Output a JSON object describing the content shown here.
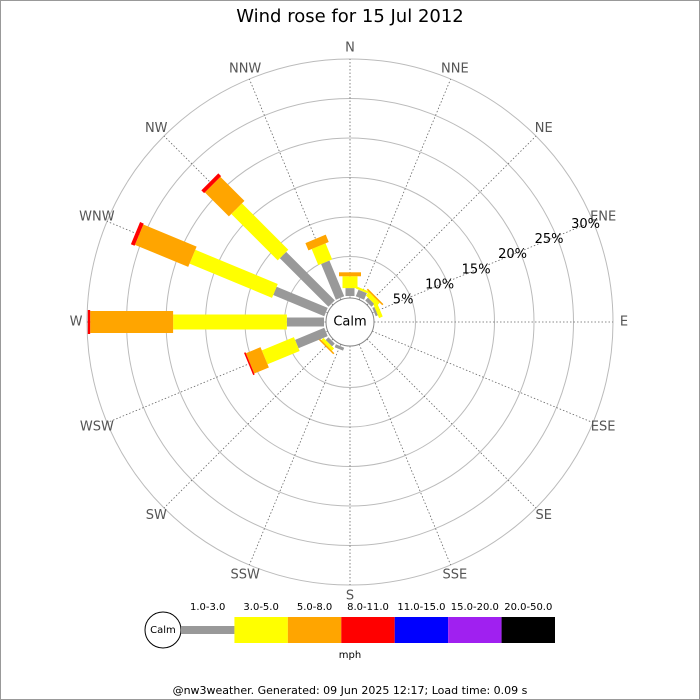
{
  "chart_data": {
    "type": "wind_rose",
    "title": "Wind rose for 15 Jul 2012",
    "categories": [
      "N",
      "NNE",
      "NE",
      "ENE",
      "E",
      "ESE",
      "SE",
      "SSE",
      "S",
      "SSW",
      "SW",
      "WSW",
      "W",
      "WNW",
      "NW",
      "NNW"
    ],
    "series": [
      {
        "name": "1.0-3.0",
        "color": "#999999",
        "values": [
          1.0,
          0.9,
          0.5,
          0.3,
          0,
          0,
          0,
          0,
          0,
          0.4,
          0.5,
          4.0,
          4.7,
          7.0,
          8.7,
          4.9
        ]
      },
      {
        "name": "3.0-5.0",
        "color": "#ffff00",
        "values": [
          1.5,
          0.3,
          0.6,
          0.5,
          0,
          0,
          0,
          0,
          0,
          0,
          0.4,
          4.4,
          14.4,
          11.3,
          8.3,
          2.2
        ]
      },
      {
        "name": "5.0-8.0",
        "color": "#ffa500",
        "values": [
          0.5,
          0,
          0.2,
          0,
          0,
          0,
          0,
          0,
          0,
          0,
          0.2,
          2.0,
          10.5,
          7.3,
          4.3,
          1.0
        ]
      },
      {
        "name": "8.0-11.0",
        "color": "#ff0000",
        "values": [
          0,
          0,
          0,
          0,
          0,
          0,
          0,
          0,
          0,
          0,
          0,
          0.2,
          0.3,
          0.5,
          0.5,
          0
        ]
      },
      {
        "name": "11.0-15.0",
        "color": "#0000ff",
        "values": [
          0,
          0,
          0,
          0,
          0,
          0,
          0,
          0,
          0,
          0,
          0,
          0,
          0,
          0,
          0,
          0
        ]
      },
      {
        "name": "15.0-20.0",
        "color": "#a020f0",
        "values": [
          0,
          0,
          0,
          0,
          0,
          0,
          0,
          0,
          0,
          0,
          0,
          0,
          0,
          0,
          0,
          0
        ]
      },
      {
        "name": "20.0-50.0",
        "color": "#000000",
        "values": [
          0,
          0,
          0,
          0,
          0,
          0,
          0,
          0,
          0,
          0,
          0,
          0,
          0,
          0,
          0,
          0
        ]
      }
    ],
    "rlim": [
      0,
      30
    ],
    "rticks": [
      {
        "value": 5,
        "label": "5%"
      },
      {
        "value": 10,
        "label": "10%"
      },
      {
        "value": 15,
        "label": "15%"
      },
      {
        "value": 20,
        "label": "20%"
      },
      {
        "value": 25,
        "label": "25%"
      },
      {
        "value": 30,
        "label": "30%"
      }
    ],
    "calm_label": "Calm",
    "unit": "mph",
    "footer": "@nw3weather. Generated: 09 Jun 2025 12:17; Load time: 0.09 s"
  }
}
